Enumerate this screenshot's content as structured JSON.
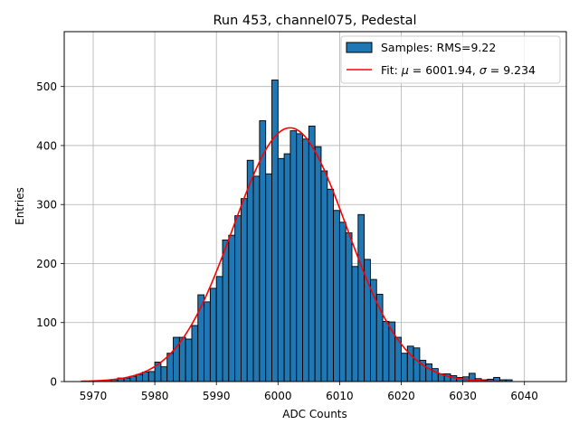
{
  "chart_data": {
    "type": "bar",
    "title": "Run 453, channel075, Pedestal",
    "xlabel": "ADC Counts",
    "ylabel": "Entries",
    "xlim": [
      5965.3,
      6046.8
    ],
    "ylim": [
      0,
      593
    ],
    "xticks": [
      5970,
      5980,
      5990,
      6000,
      6010,
      6020,
      6030,
      6040
    ],
    "yticks": [
      0,
      100,
      200,
      300,
      400,
      500
    ],
    "grid": true,
    "legend_position": "upper-right",
    "bin_start": 5968,
    "bin_width": 1,
    "hist": {
      "name": "Samples: RMS=9.22",
      "color": "#1f77b4",
      "edgecolor": "#000000",
      "values": [
        0,
        0,
        0,
        1,
        2,
        3,
        6,
        6,
        9,
        12,
        16,
        17,
        33,
        25,
        48,
        75,
        75,
        72,
        95,
        147,
        135,
        158,
        178,
        240,
        248,
        281,
        310,
        375,
        348,
        442,
        352,
        511,
        378,
        386,
        425,
        420,
        411,
        433,
        398,
        357,
        326,
        290,
        270,
        252,
        195,
        283,
        207,
        173,
        148,
        102,
        101,
        75,
        48,
        60,
        57,
        36,
        30,
        22,
        13,
        13,
        10,
        7,
        8,
        14,
        5,
        3,
        4,
        7,
        3,
        3
      ]
    },
    "fit": {
      "name": "Fit: μ = 6001.94, σ = 9.234",
      "color": "#ff0000",
      "mu": 6001.94,
      "sigma": 9.234,
      "amplitude": 430,
      "x_range": [
        5968,
        6036
      ]
    },
    "legend_entries": [
      {
        "prefix": "Samples: RMS=9.22",
        "mu_sym": "",
        "mid": "",
        "sigma_sym": "",
        "suffix": ""
      },
      {
        "prefix": "Fit: ",
        "mu_sym": "μ",
        "mid": " = 6001.94, ",
        "sigma_sym": "σ",
        "suffix": " = 9.234"
      }
    ]
  }
}
